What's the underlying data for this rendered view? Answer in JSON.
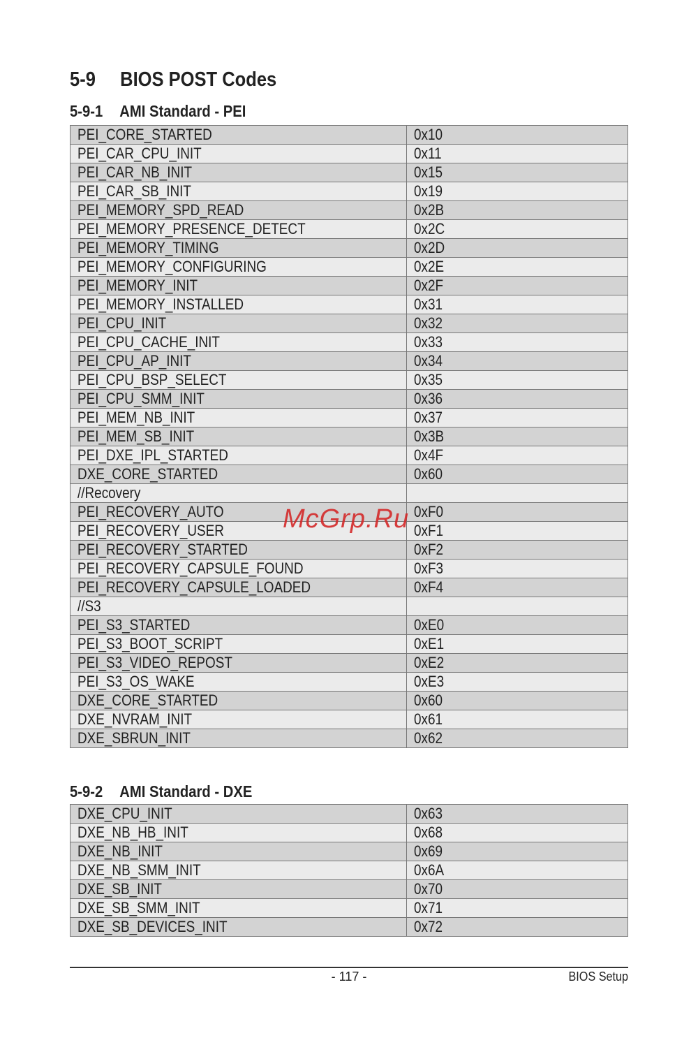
{
  "section": {
    "number": "5-9",
    "title": "BIOS POST Codes"
  },
  "tables": [
    {
      "number": "5-9-1",
      "title": "AMI Standard - PEI",
      "rows": [
        [
          "PEI_CORE_STARTED",
          "0x10"
        ],
        [
          "PEI_CAR_CPU_INIT",
          "0x11"
        ],
        [
          "PEI_CAR_NB_INIT",
          "0x15"
        ],
        [
          "PEI_CAR_SB_INIT",
          "0x19"
        ],
        [
          "PEI_MEMORY_SPD_READ",
          "0x2B"
        ],
        [
          "PEI_MEMORY_PRESENCE_DETECT",
          "0x2C"
        ],
        [
          "PEI_MEMORY_TIMING",
          "0x2D"
        ],
        [
          "PEI_MEMORY_CONFIGURING",
          "0x2E"
        ],
        [
          "PEI_MEMORY_INIT",
          "0x2F"
        ],
        [
          "PEI_MEMORY_INSTALLED",
          "0x31"
        ],
        [
          "PEI_CPU_INIT",
          "0x32"
        ],
        [
          "PEI_CPU_CACHE_INIT",
          "0x33"
        ],
        [
          "PEI_CPU_AP_INIT",
          "0x34"
        ],
        [
          "PEI_CPU_BSP_SELECT",
          "0x35"
        ],
        [
          "PEI_CPU_SMM_INIT",
          "0x36"
        ],
        [
          "PEI_MEM_NB_INIT",
          "0x37"
        ],
        [
          "PEI_MEM_SB_INIT",
          "0x3B"
        ],
        [
          "PEI_DXE_IPL_STARTED",
          "0x4F"
        ],
        [
          "DXE_CORE_STARTED",
          "0x60"
        ],
        [
          "//Recovery",
          ""
        ],
        [
          "PEI_RECOVERY_AUTO",
          "0xF0"
        ],
        [
          "PEI_RECOVERY_USER",
          "0xF1"
        ],
        [
          "PEI_RECOVERY_STARTED",
          "0xF2"
        ],
        [
          "PEI_RECOVERY_CAPSULE_FOUND",
          "0xF3"
        ],
        [
          "PEI_RECOVERY_CAPSULE_LOADED",
          "0xF4"
        ],
        [
          "//S3",
          ""
        ],
        [
          "PEI_S3_STARTED",
          "0xE0"
        ],
        [
          "PEI_S3_BOOT_SCRIPT",
          "0xE1"
        ],
        [
          "PEI_S3_VIDEO_REPOST",
          "0xE2"
        ],
        [
          "PEI_S3_OS_WAKE",
          "0xE3"
        ],
        [
          "DXE_CORE_STARTED",
          "0x60"
        ],
        [
          "DXE_NVRAM_INIT",
          "0x61"
        ],
        [
          "DXE_SBRUN_INIT",
          "0x62"
        ]
      ]
    },
    {
      "number": "5-9-2",
      "title": "AMI Standard - DXE",
      "rows": [
        [
          "DXE_CPU_INIT",
          "0x63"
        ],
        [
          "DXE_NB_HB_INIT",
          "0x68"
        ],
        [
          "DXE_NB_INIT",
          "0x69"
        ],
        [
          "DXE_NB_SMM_INIT",
          "0x6A"
        ],
        [
          "DXE_SB_INIT",
          "0x70"
        ],
        [
          "DXE_SB_SMM_INIT",
          "0x71"
        ],
        [
          "DXE_SB_DEVICES_INIT",
          "0x72"
        ]
      ]
    }
  ],
  "footer": {
    "page": "- 117 -",
    "title": "BIOS Setup"
  },
  "watermark": "McGrp.Ru",
  "colors": {
    "row_dark": "#d3d3d3",
    "row_light": "#ebebeb",
    "watermark": "#d42a2a"
  }
}
